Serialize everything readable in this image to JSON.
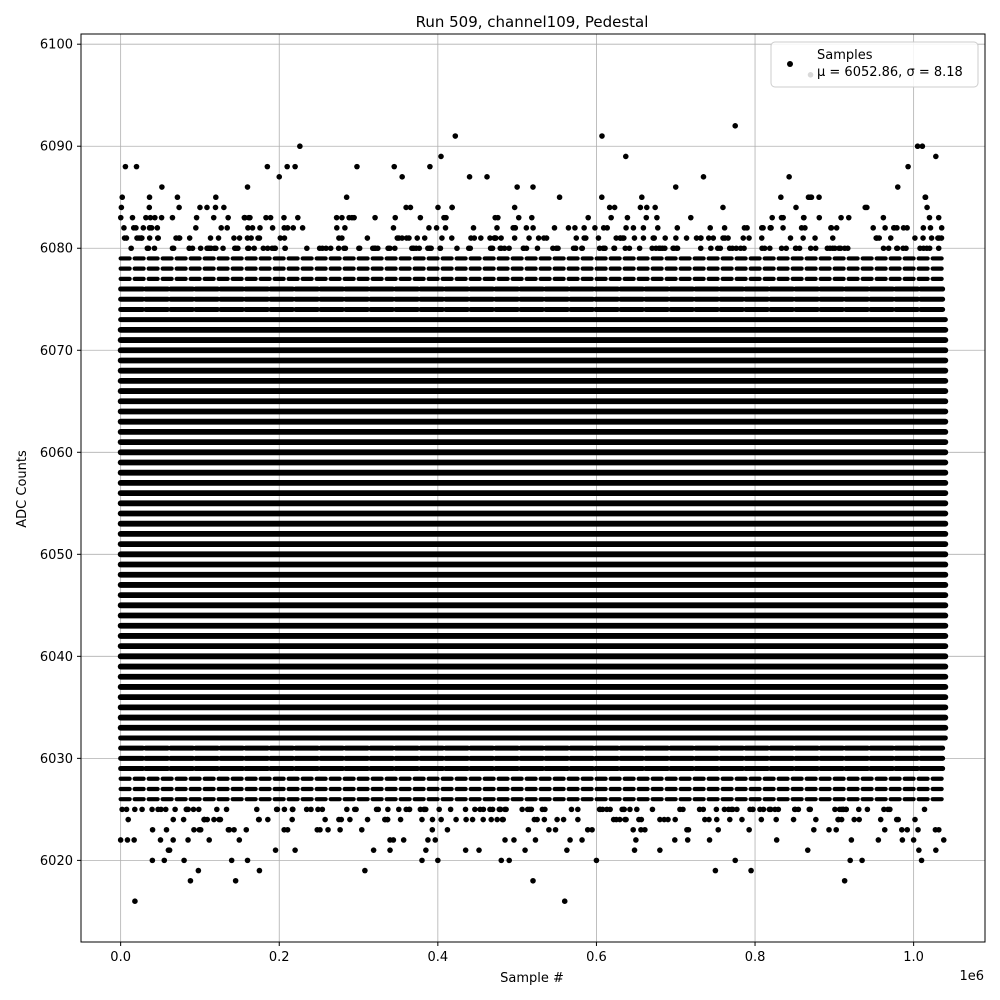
{
  "chart_data": {
    "type": "scatter",
    "title": "Run 509, channel109, Pedestal",
    "xlabel": "Sample #",
    "ylabel": "ADC Counts",
    "x_scale_label": "1e6",
    "xlim": [
      -0.05,
      1.09
    ],
    "ylim": [
      6012,
      6101
    ],
    "x_ticks": [
      0.0,
      0.2,
      0.4,
      0.6,
      0.8,
      1.0
    ],
    "x_tick_labels": [
      "0.0",
      "0.2",
      "0.4",
      "0.6",
      "0.8",
      "1.0"
    ],
    "y_ticks": [
      6020,
      6030,
      6040,
      6050,
      6060,
      6070,
      6080,
      6090,
      6100
    ],
    "y_tick_labels": [
      "6020",
      "6030",
      "6040",
      "6050",
      "6060",
      "6070",
      "6080",
      "6090",
      "6100"
    ],
    "grid": true,
    "legend_position": "top-right",
    "series": [
      {
        "name": "Samples",
        "color": "#000000",
        "x_range": [
          0.0,
          1.04
        ],
        "dense_band": [
          6026,
          6079
        ],
        "mean": 6052.86,
        "sigma": 8.18,
        "points": [
          [
            0.002,
            6085
          ],
          [
            0.006,
            6088
          ],
          [
            0.02,
            6088
          ],
          [
            0.052,
            6086
          ],
          [
            0.185,
            6088
          ],
          [
            0.2,
            6087
          ],
          [
            0.21,
            6088
          ],
          [
            0.22,
            6088
          ],
          [
            0.226,
            6090
          ],
          [
            0.298,
            6088
          ],
          [
            0.345,
            6088
          ],
          [
            0.355,
            6087
          ],
          [
            0.39,
            6088
          ],
          [
            0.404,
            6089
          ],
          [
            0.422,
            6091
          ],
          [
            0.44,
            6087
          ],
          [
            0.462,
            6087
          ],
          [
            0.607,
            6091
          ],
          [
            0.637,
            6089
          ],
          [
            0.735,
            6087
          ],
          [
            0.775,
            6092
          ],
          [
            0.843,
            6087
          ],
          [
            0.87,
            6097
          ],
          [
            0.993,
            6088
          ],
          [
            1.005,
            6090
          ],
          [
            1.011,
            6090
          ],
          [
            1.028,
            6089
          ],
          [
            1.015,
            6085
          ],
          [
            0.98,
            6086
          ],
          [
            0.7,
            6086
          ],
          [
            0.5,
            6086
          ],
          [
            0.52,
            6086
          ],
          [
            0.1,
            6084
          ],
          [
            0.12,
            6085
          ],
          [
            0.16,
            6086
          ],
          [
            0.018,
            6016
          ],
          [
            0.088,
            6018
          ],
          [
            0.145,
            6018
          ],
          [
            0.52,
            6018
          ],
          [
            0.56,
            6016
          ],
          [
            0.913,
            6018
          ],
          [
            0.308,
            6019
          ],
          [
            0.098,
            6019
          ],
          [
            0.175,
            6019
          ],
          [
            0.75,
            6019
          ],
          [
            0.795,
            6019
          ],
          [
            0.04,
            6020
          ],
          [
            0.055,
            6020
          ],
          [
            0.08,
            6020
          ],
          [
            0.14,
            6020
          ],
          [
            0.16,
            6020
          ],
          [
            0.38,
            6020
          ],
          [
            0.4,
            6020
          ],
          [
            0.48,
            6020
          ],
          [
            0.6,
            6020
          ],
          [
            0.68,
            6021
          ],
          [
            0.775,
            6020
          ],
          [
            0.92,
            6020
          ],
          [
            0.935,
            6020
          ],
          [
            1.0,
            6022
          ],
          [
            1.01,
            6020
          ],
          [
            1.028,
            6021
          ],
          [
            1.038,
            6022
          ],
          [
            0.0,
            6022
          ],
          [
            0.22,
            6021
          ],
          [
            0.49,
            6020
          ],
          [
            0.51,
            6021
          ]
        ]
      }
    ],
    "legend": {
      "entries": [
        {
          "label": "Samples",
          "sublabel": "μ = 6052.86, σ = 8.18"
        }
      ]
    }
  }
}
